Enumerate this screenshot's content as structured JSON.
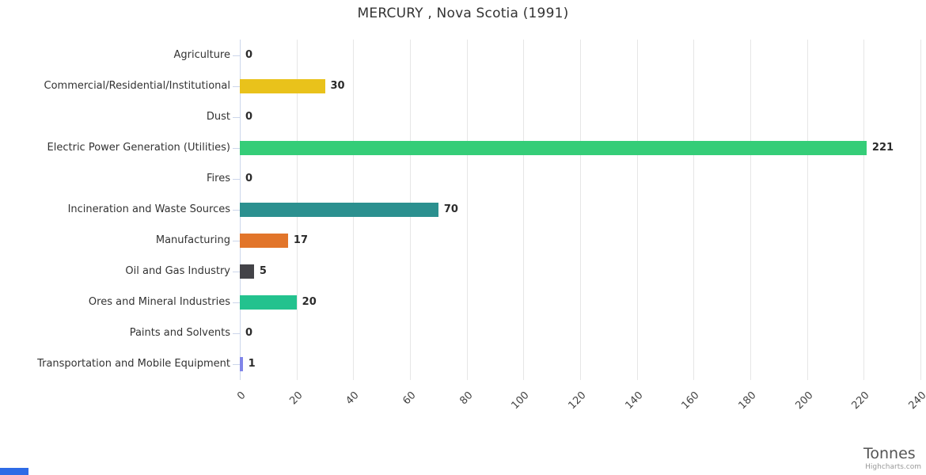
{
  "chart": {
    "title": "MERCURY , Nova Scotia (1991)",
    "value_axis_title": "Tonnes",
    "credits": "Highcharts.com"
  },
  "chart_data": {
    "type": "bar",
    "orientation": "horizontal",
    "title": "MERCURY , Nova Scotia (1991)",
    "xlabel": "Tonnes",
    "categories": [
      "Agriculture",
      "Commercial/Residential/Institutional",
      "Dust",
      "Electric Power Generation (Utilities)",
      "Fires",
      "Incineration and Waste Sources",
      "Manufacturing",
      "Oil and Gas Industry",
      "Ores and Mineral Industries",
      "Paints and Solvents",
      "Transportation and Mobile Equipment"
    ],
    "values": [
      0,
      30,
      0,
      221,
      0,
      70,
      17,
      5,
      20,
      0,
      1
    ],
    "bar_colors": [
      null,
      "#e9c21b",
      null,
      "#35cd78",
      null,
      "#2b908f",
      "#e2752a",
      "#434348",
      "#23c28e",
      null,
      "#8085e9"
    ],
    "data_labels": [
      "0",
      "30",
      "0",
      "221",
      "0",
      "70",
      "17",
      "5",
      "20",
      "0",
      "1"
    ],
    "value_axis_ticks": [
      0,
      20,
      40,
      60,
      80,
      100,
      120,
      140,
      160,
      180,
      200,
      220,
      240
    ],
    "xlim": [
      0,
      240
    ],
    "grid": true,
    "legend": false
  }
}
